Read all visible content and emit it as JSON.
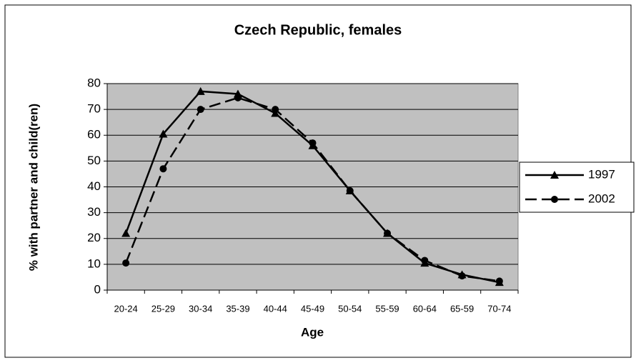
{
  "chart_data": {
    "type": "line",
    "title": "Czech Republic, females",
    "xlabel": "Age",
    "ylabel": "% with partner and child(ren)",
    "categories": [
      "20-24",
      "25-29",
      "30-34",
      "35-39",
      "40-44",
      "45-49",
      "50-54",
      "55-59",
      "60-64",
      "65-59",
      "70-74"
    ],
    "series": [
      {
        "name": "1997",
        "color": "#000000",
        "dash": "solid",
        "marker": "triangle",
        "values": [
          22,
          60.5,
          77,
          76,
          68.5,
          56,
          38.5,
          22,
          10.5,
          6,
          3
        ]
      },
      {
        "name": "2002",
        "color": "#000000",
        "dash": "dashed",
        "marker": "circle",
        "values": [
          10.5,
          47,
          70,
          74.5,
          70,
          57,
          38.5,
          22,
          11.5,
          5.5,
          3.5
        ]
      }
    ],
    "ylim": [
      0,
      80
    ],
    "yticks": [
      0,
      10,
      20,
      30,
      40,
      50,
      60,
      70,
      80
    ],
    "grid": true,
    "legend": "right",
    "plot_background": "#c0c0c0"
  }
}
